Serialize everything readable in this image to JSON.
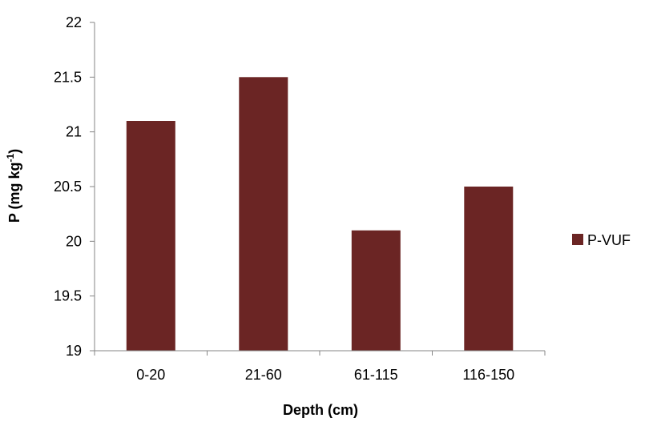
{
  "chart_data": {
    "type": "bar",
    "categories": [
      "0-20",
      "21-60",
      "61-115",
      "116-150"
    ],
    "series": [
      {
        "name": "P-VUF",
        "values": [
          21.1,
          21.5,
          20.1,
          20.5
        ],
        "color": "#6b2524"
      }
    ],
    "xlabel": "Depth (cm)",
    "ylabel": {
      "main": "P (mg kg",
      "superscript": "-1",
      "close": ")"
    },
    "ylim": [
      19,
      22
    ],
    "yticks": [
      "19",
      "19.5",
      "20",
      "20.5",
      "21",
      "21.5",
      "22"
    ],
    "grid": false,
    "legend": {
      "position": "right",
      "entries": [
        "P-VUF"
      ]
    }
  }
}
